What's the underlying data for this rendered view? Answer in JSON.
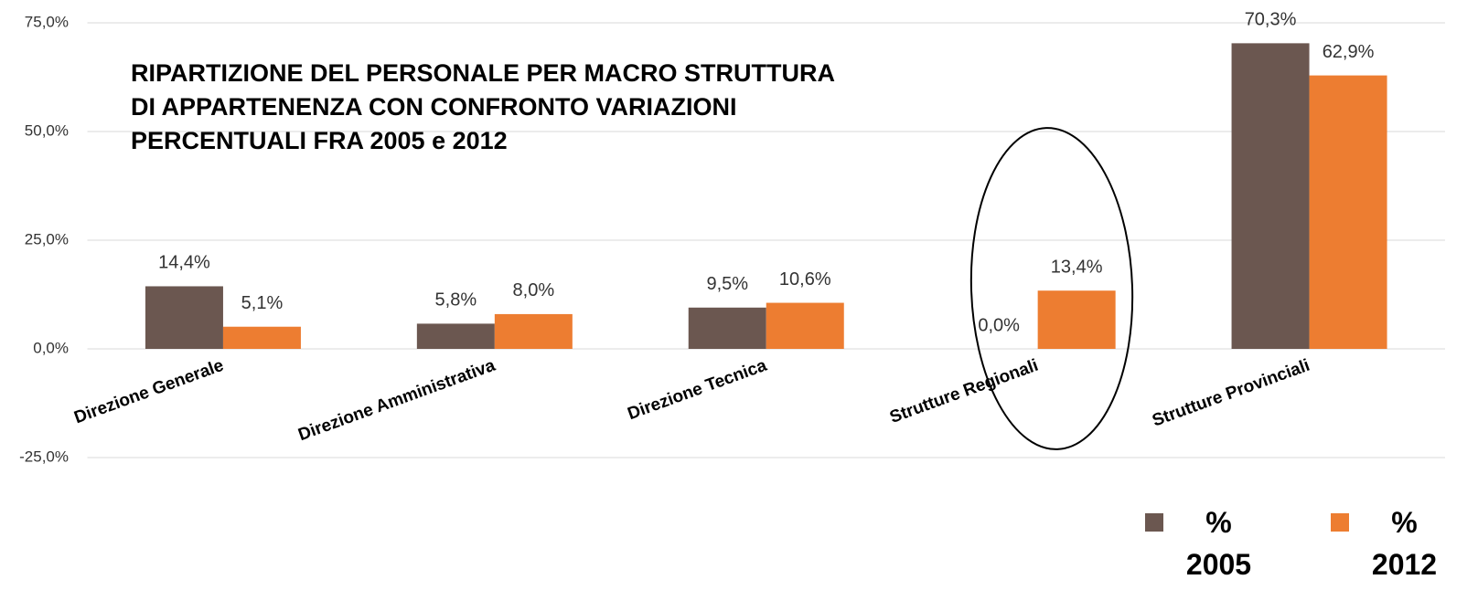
{
  "chart_data": {
    "type": "bar",
    "title": [
      "RIPARTIZIONE DEL PERSONALE PER MACRO STRUTTURA",
      "DI APPARTENENZA CON CONFRONTO VARIAZIONI",
      "PERCENTUALI FRA 2005 e 2012"
    ],
    "categories": [
      "Direzione Generale",
      "Direzione Amministrativa",
      "Direzione Tecnica",
      "Strutture Regionali",
      "Strutture Provinciali"
    ],
    "series": [
      {
        "name": "% 2005",
        "color": "#6b5750",
        "values": [
          14.4,
          5.8,
          9.5,
          0.0,
          70.3
        ],
        "value_labels": [
          "14,4%",
          "5,8%",
          "9,5%",
          "0,0%",
          "70,3%"
        ]
      },
      {
        "name": "% 2012",
        "color": "#ed7d31",
        "values": [
          5.1,
          8.0,
          10.6,
          13.4,
          62.9
        ],
        "value_labels": [
          "5,1%",
          "8,0%",
          "10,6%",
          "13,4%",
          "62,9%"
        ]
      }
    ],
    "ylim": [
      -25,
      75
    ],
    "yticks": [
      {
        "value": -25,
        "label": "-25,0%"
      },
      {
        "value": 0,
        "label": "0,0%"
      },
      {
        "value": 25,
        "label": "25,0%"
      },
      {
        "value": 50,
        "label": "50,0%"
      },
      {
        "value": 75,
        "label": "75,0%"
      }
    ],
    "grid": true
  }
}
